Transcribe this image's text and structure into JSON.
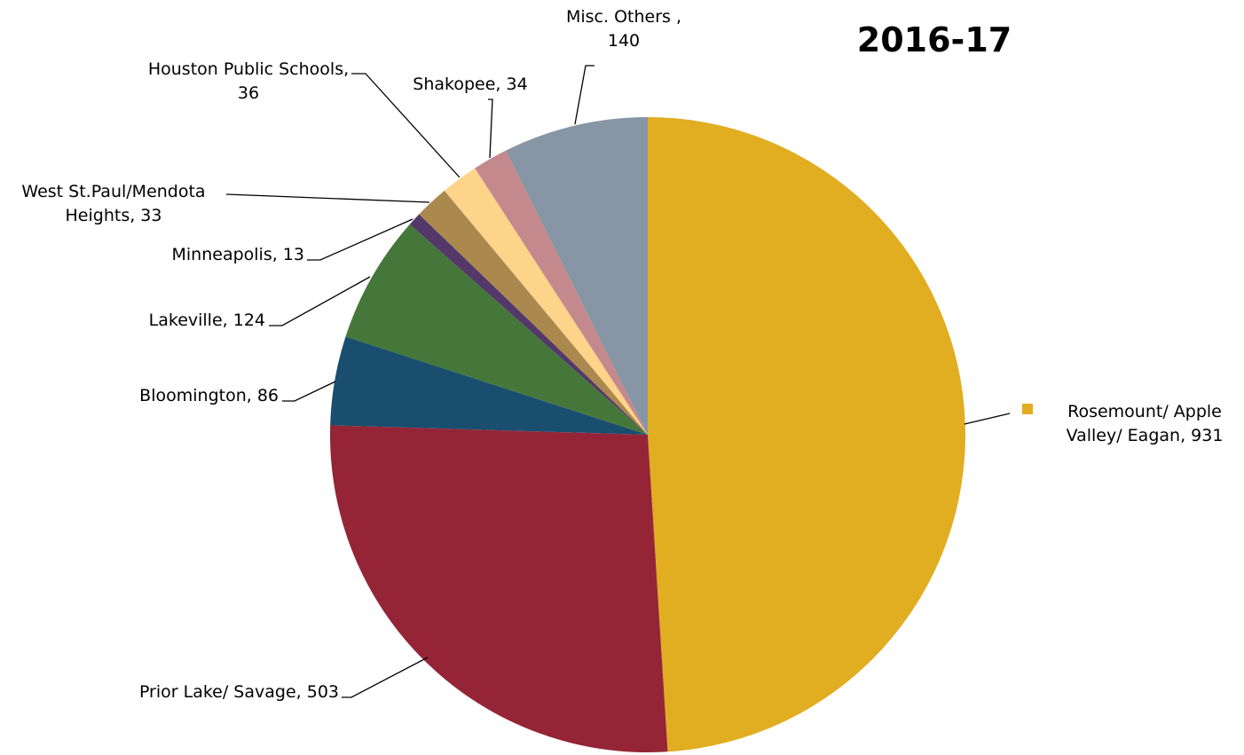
{
  "chart_data": {
    "type": "pie",
    "title": "2016-17",
    "slices": [
      {
        "label_lines": [
          "Rosemount/ Apple",
          "Valley/ Eagan,  931"
        ],
        "value": 931,
        "color": "#e1ad21"
      },
      {
        "label_lines": [
          "Prior Lake/ Savage,  503"
        ],
        "value": 503,
        "color": "#952536"
      },
      {
        "label_lines": [
          "Bloomington,  86"
        ],
        "value": 86,
        "color": "#1a4e6e"
      },
      {
        "label_lines": [
          "Lakeville,  124"
        ],
        "value": 124,
        "color": "#46773a"
      },
      {
        "label_lines": [
          "Minneapolis,  13"
        ],
        "value": 13,
        "color": "#533869"
      },
      {
        "label_lines": [
          "West St.Paul/Mendota",
          "Heights,  33"
        ],
        "value": 33,
        "color": "#ab884e"
      },
      {
        "label_lines": [
          "Houston Public Schools,",
          "36"
        ],
        "value": 36,
        "color": "#fed38a"
      },
      {
        "label_lines": [
          "Shakopee,  34"
        ],
        "value": 34,
        "color": "#c4898d"
      },
      {
        "label_lines": [
          "Misc. Others ,",
          "140"
        ],
        "value": 140,
        "color": "#8796a5"
      }
    ]
  }
}
